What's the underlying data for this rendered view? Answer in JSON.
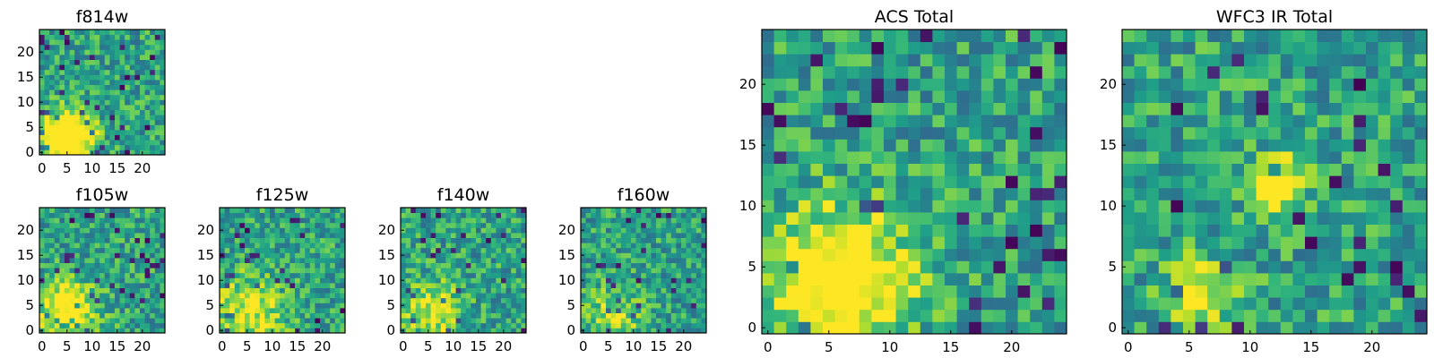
{
  "chart_data": [
    {
      "type": "heatmap",
      "title": "f814w",
      "grid_size": 25,
      "xticks": [
        "0",
        "5",
        "10",
        "15",
        "20"
      ],
      "yticks": [
        "0",
        "5",
        "10",
        "15",
        "20"
      ],
      "colormap": "viridis",
      "hotspots": [
        {
          "x": 5,
          "y": 3,
          "radius": 3.5,
          "strength": 0.9
        }
      ],
      "seed": 11
    },
    {
      "type": "heatmap",
      "title": "f105w",
      "grid_size": 25,
      "xticks": [
        "0",
        "5",
        "10",
        "15",
        "20"
      ],
      "yticks": [
        "0",
        "5",
        "10",
        "15",
        "20"
      ],
      "colormap": "viridis",
      "hotspots": [
        {
          "x": 5,
          "y": 4,
          "radius": 4,
          "strength": 0.6
        }
      ],
      "seed": 23
    },
    {
      "type": "heatmap",
      "title": "f125w",
      "grid_size": 25,
      "xticks": [
        "0",
        "5",
        "10",
        "15",
        "20"
      ],
      "yticks": [
        "0",
        "5",
        "10",
        "15",
        "20"
      ],
      "colormap": "viridis",
      "hotspots": [
        {
          "x": 5,
          "y": 4,
          "radius": 5,
          "strength": 0.4
        }
      ],
      "seed": 37
    },
    {
      "type": "heatmap",
      "title": "f140w",
      "grid_size": 25,
      "xticks": [
        "0",
        "5",
        "10",
        "15",
        "20"
      ],
      "yticks": [
        "0",
        "5",
        "10",
        "15",
        "20"
      ],
      "colormap": "viridis",
      "hotspots": [
        {
          "x": 6,
          "y": 4,
          "radius": 4,
          "strength": 0.4
        }
      ],
      "seed": 41
    },
    {
      "type": "heatmap",
      "title": "f160w",
      "grid_size": 25,
      "xticks": [
        "0",
        "5",
        "10",
        "15",
        "20"
      ],
      "yticks": [
        "0",
        "5",
        "10",
        "15",
        "20"
      ],
      "colormap": "viridis",
      "hotspots": [
        {
          "x": 6,
          "y": 3,
          "radius": 4,
          "strength": 0.3
        }
      ],
      "seed": 53
    },
    {
      "type": "heatmap",
      "title": "ACS Total",
      "grid_size": 25,
      "xticks": [
        "0",
        "5",
        "10",
        "15",
        "20"
      ],
      "yticks": [
        "0",
        "5",
        "10",
        "15",
        "20"
      ],
      "colormap": "viridis",
      "hotspots": [
        {
          "x": 6,
          "y": 4,
          "radius": 4,
          "strength": 0.7
        }
      ],
      "seed": 67
    },
    {
      "type": "heatmap",
      "title": "WFC3 IR Total",
      "grid_size": 25,
      "xticks": [
        "0",
        "5",
        "10",
        "15",
        "20"
      ],
      "yticks": [
        "0",
        "5",
        "10",
        "15",
        "20"
      ],
      "colormap": "viridis",
      "hotspots": [
        {
          "x": 12,
          "y": 12,
          "radius": 1.5,
          "strength": 0.6
        },
        {
          "x": 6,
          "y": 3,
          "radius": 2,
          "strength": 0.4
        }
      ],
      "seed": 79
    }
  ]
}
